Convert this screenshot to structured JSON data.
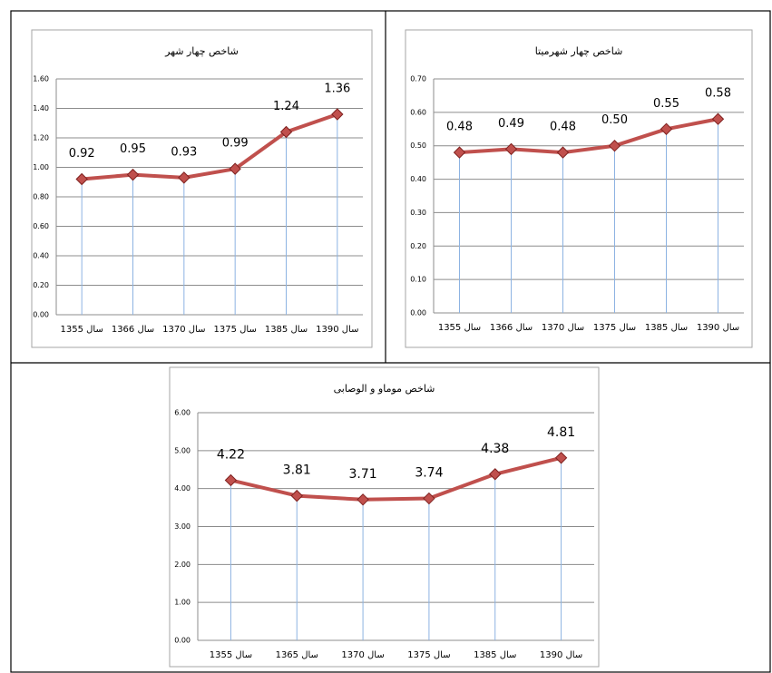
{
  "chart_data": [
    {
      "type": "line",
      "title": "شاخص چهار شهر",
      "categories": [
        "سال 1355",
        "سال 1366",
        "سال 1370",
        "سال 1375",
        "سال 1385",
        "سال 1390"
      ],
      "values": [
        0.92,
        0.95,
        0.93,
        0.99,
        1.24,
        1.36
      ],
      "color": "#c0504d",
      "drop_color": "#8db3e2",
      "grid": true,
      "ylim": [
        0,
        1.6
      ],
      "yticks": [
        {
          "value": 0,
          "label": "0.00"
        },
        {
          "value": 0.2,
          "label": "0.20"
        },
        {
          "value": 0.4,
          "label": "0.40"
        },
        {
          "value": 0.6,
          "label": "0.60"
        },
        {
          "value": 0.8,
          "label": "0.80"
        },
        {
          "value": 1,
          "label": "1.00"
        },
        {
          "value": 1.2,
          "label": "1.20"
        },
        {
          "value": 1.4,
          "label": "1.40"
        },
        {
          "value": 1.6,
          "label": "1.60"
        }
      ]
    },
    {
      "type": "line",
      "title": "شاخص چهار شهرمیتا",
      "categories": [
        "سال 1355",
        "سال 1366",
        "سال 1370",
        "سال 1375",
        "سال 1385",
        "سال 1390"
      ],
      "values": [
        0.48,
        0.49,
        0.48,
        0.5,
        0.55,
        0.58
      ],
      "value_labels": [
        "0.48",
        "0.49",
        "0.48",
        "0.50",
        "0.55",
        "0.58"
      ],
      "color": "#c0504d",
      "drop_color": "#8db3e2",
      "grid": true,
      "ylim": [
        0,
        0.7
      ],
      "yticks": [
        {
          "value": 0,
          "label": "0.00"
        },
        {
          "value": 0.1,
          "label": "0.10"
        },
        {
          "value": 0.2,
          "label": "0.20"
        },
        {
          "value": 0.3,
          "label": "0.30"
        },
        {
          "value": 0.4,
          "label": "0.40"
        },
        {
          "value": 0.5,
          "label": "0.50"
        },
        {
          "value": 0.6,
          "label": "0.60"
        },
        {
          "value": 0.7,
          "label": "0.70"
        }
      ]
    },
    {
      "type": "line",
      "title": "شاخص موماو و الوصابی",
      "categories": [
        "سال 1355",
        "سال 1365",
        "سال 1370",
        "سال 1375",
        "سال 1385",
        "سال 1390"
      ],
      "values": [
        4.22,
        3.81,
        3.71,
        3.74,
        4.38,
        4.81
      ],
      "color": "#c0504d",
      "drop_color": "#8db3e2",
      "grid": true,
      "ylim": [
        0,
        6
      ],
      "yticks": [
        {
          "value": 0,
          "label": "0.00"
        },
        {
          "value": 1,
          "label": "1.00"
        },
        {
          "value": 2,
          "label": "2.00"
        },
        {
          "value": 3,
          "label": "3.00"
        },
        {
          "value": 4,
          "label": "4.00"
        },
        {
          "value": 5,
          "label": "5.00"
        },
        {
          "value": 6,
          "label": "6.00"
        }
      ]
    }
  ]
}
